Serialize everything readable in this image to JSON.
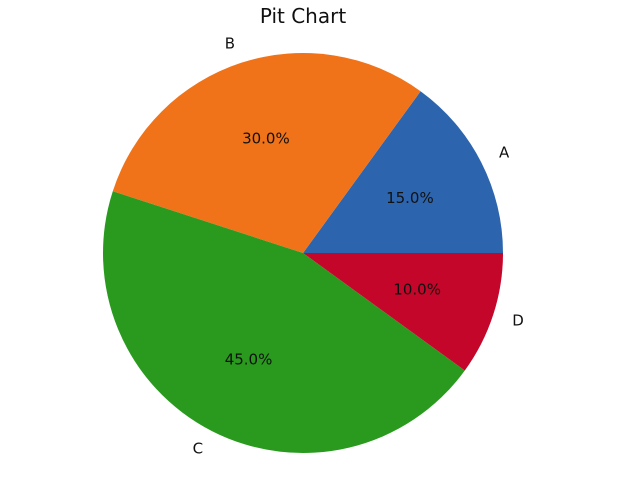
{
  "chart_data": {
    "type": "pie",
    "title": "Pit Chart",
    "categories": [
      "A",
      "B",
      "C",
      "D"
    ],
    "values": [
      15,
      30,
      45,
      10
    ],
    "percent_labels": [
      "15.0%",
      "30.0%",
      "45.0%",
      "10.0%"
    ],
    "colors": [
      "#2c65ae",
      "#f0731a",
      "#299a1e",
      "#c3062a"
    ],
    "start_angle_deg": 0,
    "direction": "counterclockwise",
    "legend": "none"
  }
}
